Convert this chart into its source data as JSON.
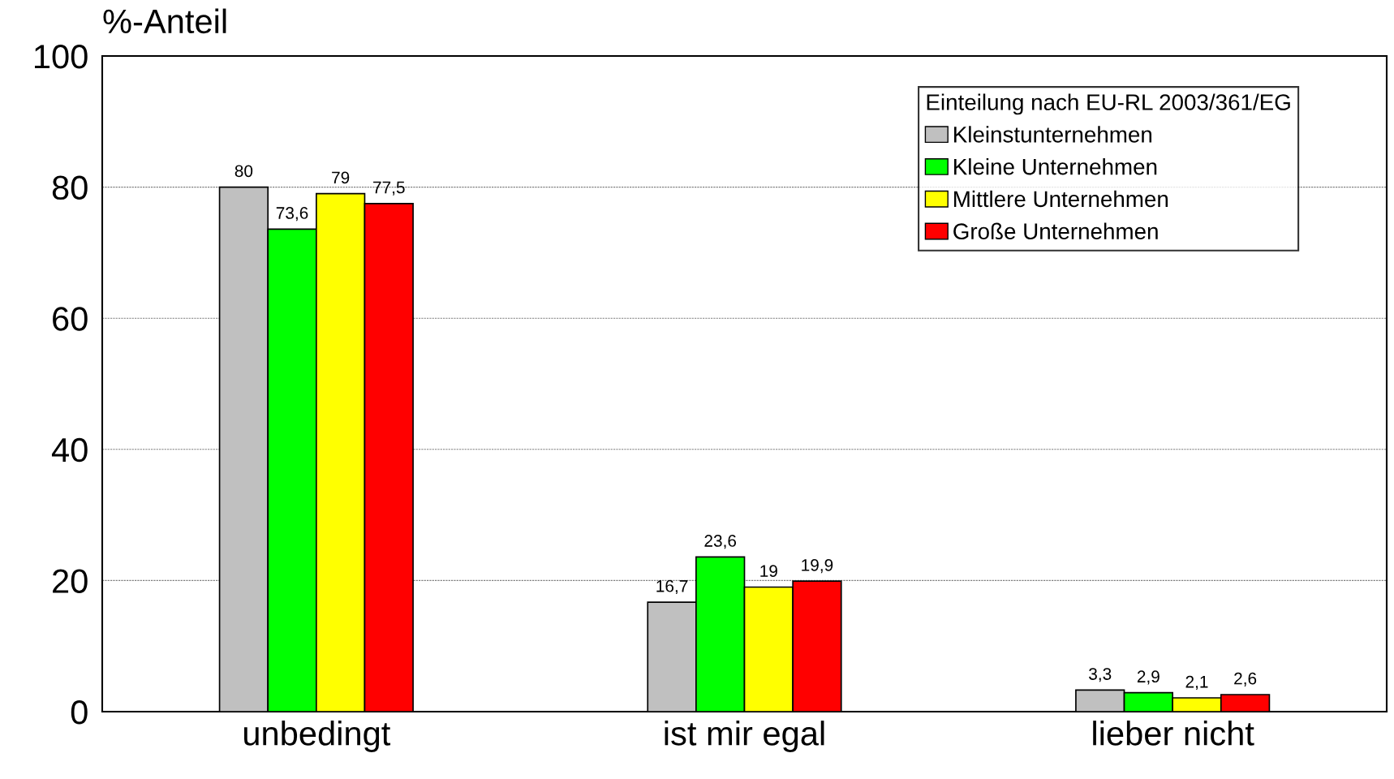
{
  "chart_data": {
    "type": "bar",
    "ylabel": "%-Anteil",
    "legend_title": "Einteilung nach EU-RL 2003/361/EG",
    "categories": [
      "unbedingt",
      "ist mir egal",
      "lieber nicht"
    ],
    "series": [
      {
        "name": "Kleinstunternehmen",
        "color": "#c0c0c0",
        "values": [
          80,
          16.7,
          3.3
        ],
        "value_labels": [
          "80",
          "16,7",
          "3,3"
        ]
      },
      {
        "name": "Kleine Unternehmen",
        "color": "#00ff00",
        "values": [
          73.6,
          23.6,
          2.9
        ],
        "value_labels": [
          "73,6",
          "23,6",
          "2,9"
        ]
      },
      {
        "name": "Mittlere Unternehmen",
        "color": "#ffff00",
        "values": [
          79,
          19,
          2.1
        ],
        "value_labels": [
          "79",
          "19",
          "2,1"
        ]
      },
      {
        "name": "Große Unternehmen",
        "color": "#ff0000",
        "values": [
          77.5,
          19.9,
          2.6
        ],
        "value_labels": [
          "77,5",
          "19,9",
          "2,6"
        ]
      }
    ],
    "ylim": [
      0,
      100
    ],
    "yticks": [
      0,
      20,
      40,
      60,
      80,
      100
    ],
    "grid": "y",
    "legend": "top right"
  }
}
